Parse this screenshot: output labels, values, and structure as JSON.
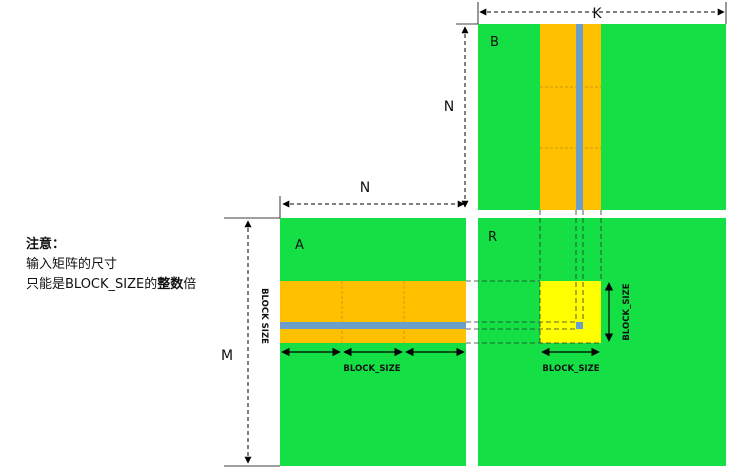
{
  "diagram": {
    "matrix_labels": {
      "a": "A",
      "b": "B",
      "result": "R"
    },
    "dimension_labels": {
      "k": "K",
      "n_vertical": "N",
      "n_horizontal": "N",
      "m": "M"
    },
    "block_size_labels": {
      "a_row": "BLOCK_SIZE",
      "r_bottom": "BLOCK_SIZE",
      "a_side": "BLOCK SIZE",
      "r_side": "BLOCK_SIZE"
    },
    "colors": {
      "matrix": "#14e046",
      "block": "#ffc000",
      "result_block": "#ffff00",
      "strip": "#6b9ec8"
    }
  },
  "note": {
    "title": "注意：",
    "line1": "输入矩阵的尺寸",
    "line2_prefix": "只能是BLOCK_SIZE的",
    "line2_bold": "整数",
    "line2_suffix": "倍"
  }
}
